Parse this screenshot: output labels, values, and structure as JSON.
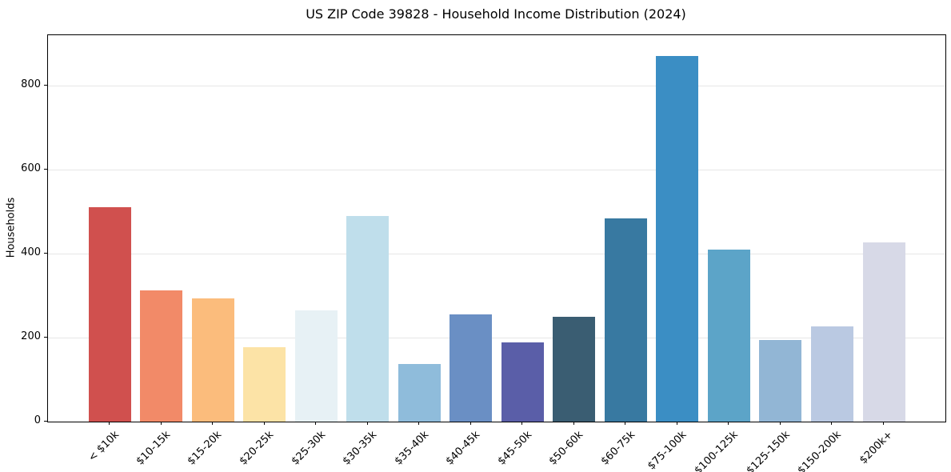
{
  "chart_data": {
    "type": "bar",
    "title": "US ZIP Code 39828 - Household Income Distribution (2024)",
    "xlabel": "",
    "ylabel": "Households",
    "categories": [
      "< $10k",
      "$10-15k",
      "$15-20k",
      "$20-25k",
      "$25-30k",
      "$30-35k",
      "$35-40k",
      "$40-45k",
      "$45-50k",
      "$50-60k",
      "$60-75k",
      "$75-100k",
      "$100-125k",
      "$125-150k",
      "$150-200k",
      "$200k+"
    ],
    "values": [
      510,
      312,
      293,
      178,
      265,
      490,
      138,
      256,
      188,
      250,
      484,
      870,
      410,
      194,
      226,
      427
    ],
    "bar_colors": [
      "#d0504e",
      "#f28a68",
      "#fbbc7c",
      "#fce3a6",
      "#e7f1f5",
      "#bfdeeb",
      "#8fbcdb",
      "#6a8fc4",
      "#5a5ea8",
      "#3a5d72",
      "#3879a1",
      "#3b8ec4",
      "#5ca4c8",
      "#92b6d5",
      "#bac9e2",
      "#d7d9e7"
    ],
    "yticks": [
      0,
      200,
      400,
      600,
      800
    ],
    "ylim": [
      0,
      920
    ],
    "grid": true,
    "legend": "none",
    "gridline_color": "#e6e6e6",
    "spine_color": "#000000",
    "background_color": "#ffffff"
  }
}
